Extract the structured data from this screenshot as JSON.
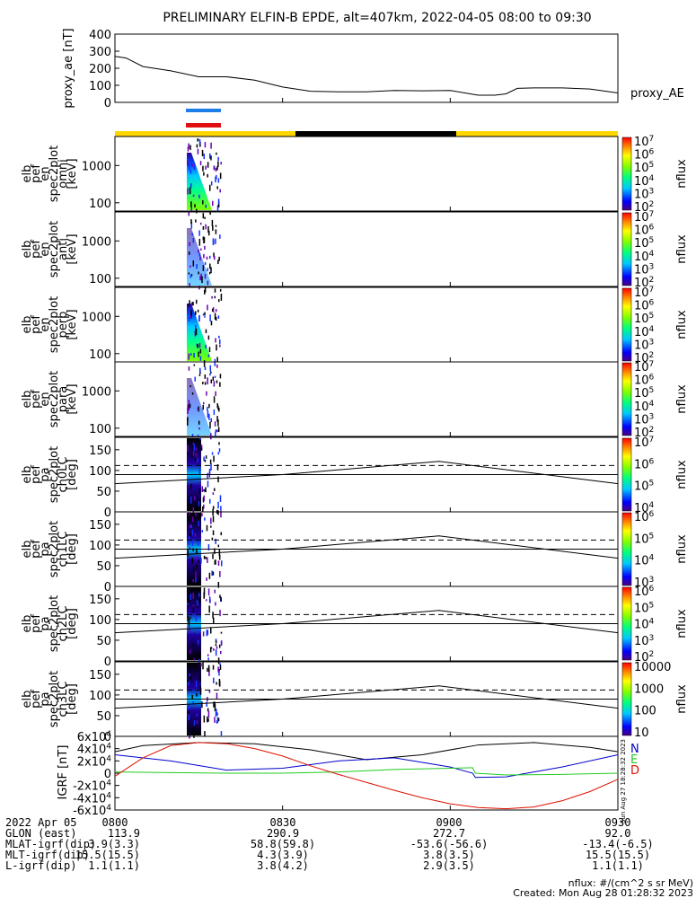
{
  "title": "PRELIMINARY ELFIN-B EPDE, alt=407km, 2022-04-05 08:00 to 09:30",
  "colors": {
    "sunlit": "#ffd700",
    "eclipse": "#000000",
    "blue_bar": "#1e7ee8",
    "red_bar": "#e01010",
    "igrf_n": "#0000cc",
    "igrf_e": "#22cc22",
    "igrf_d": "#dd1100",
    "igrf_total": "#000000"
  },
  "chart_data": [
    {
      "type": "line",
      "id": "proxy_ae",
      "ylabel": "proxy_ae [nT]",
      "series_name": "proxy_AE",
      "ylim": [
        0,
        400
      ],
      "yticks": [
        "0",
        "100",
        "200",
        "300",
        "400"
      ],
      "x": [
        0,
        2,
        5,
        10,
        15,
        20,
        25,
        30,
        35,
        40,
        45,
        50,
        55,
        60,
        65,
        68,
        70,
        72,
        75,
        80,
        85,
        90
      ],
      "values": [
        270,
        260,
        210,
        185,
        150,
        150,
        130,
        90,
        65,
        62,
        62,
        70,
        68,
        70,
        42,
        42,
        50,
        82,
        85,
        85,
        78,
        55
      ]
    },
    {
      "type": "heatmap",
      "id": "en_omni",
      "ylabel": [
        "elb",
        "pef",
        "en",
        "spec2plot",
        "omni",
        "[keV]"
      ],
      "yscale": "log",
      "ylim": [
        60,
        6000
      ],
      "yticks": [
        "100",
        "1000"
      ],
      "colorbar": {
        "label": "nflux",
        "ticks": [
          "10^2",
          "10^3",
          "10^4",
          "10^5",
          "10^6",
          "10^7"
        ]
      }
    },
    {
      "type": "heatmap",
      "id": "en_anti",
      "ylabel": [
        "elb",
        "pef",
        "en",
        "spec2plot",
        "anti",
        "[keV]"
      ],
      "yscale": "log",
      "ylim": [
        60,
        6000
      ],
      "yticks": [
        "100",
        "1000"
      ],
      "colorbar": {
        "label": "nflux",
        "ticks": [
          "10^2",
          "10^3",
          "10^4",
          "10^5",
          "10^6",
          "10^7"
        ]
      }
    },
    {
      "type": "heatmap",
      "id": "en_perp",
      "ylabel": [
        "elb",
        "pef",
        "en",
        "spec2plot",
        "perp",
        "[keV]"
      ],
      "yscale": "log",
      "ylim": [
        60,
        6000
      ],
      "yticks": [
        "100",
        "1000"
      ],
      "colorbar": {
        "label": "nflux",
        "ticks": [
          "10^2",
          "10^3",
          "10^4",
          "10^5",
          "10^6",
          "10^7"
        ]
      }
    },
    {
      "type": "heatmap",
      "id": "en_para",
      "ylabel": [
        "elb",
        "pef",
        "en",
        "spec2plot",
        "para",
        "[keV]"
      ],
      "yscale": "log",
      "ylim": [
        60,
        6000
      ],
      "yticks": [
        "100",
        "1000"
      ],
      "colorbar": {
        "label": "nflux",
        "ticks": [
          "10^2",
          "10^3",
          "10^4",
          "10^5",
          "10^6",
          "10^7"
        ]
      }
    },
    {
      "type": "heatmap",
      "id": "pa_ch0",
      "ylabel": [
        "elb",
        "pef",
        "pa",
        "spec2plot",
        "ch0LC",
        "[deg]"
      ],
      "ylim": [
        0,
        180
      ],
      "yticks": [
        "0",
        "50",
        "100",
        "150"
      ],
      "colorbar": {
        "label": "nflux",
        "ticks": [
          "10^4",
          "10^5",
          "10^6",
          "10^7"
        ]
      }
    },
    {
      "type": "heatmap",
      "id": "pa_ch1",
      "ylabel": [
        "elb",
        "pef",
        "pa",
        "spec2plot",
        "ch1LC",
        "[deg]"
      ],
      "ylim": [
        0,
        180
      ],
      "yticks": [
        "0",
        "50",
        "100",
        "150"
      ],
      "colorbar": {
        "label": "nflux",
        "ticks": [
          "10^3",
          "10^4",
          "10^5",
          "10^6"
        ]
      }
    },
    {
      "type": "heatmap",
      "id": "pa_ch2",
      "ylabel": [
        "elb",
        "pef",
        "pa",
        "spec2plot",
        "ch2LC",
        "[deg]"
      ],
      "ylim": [
        0,
        180
      ],
      "yticks": [
        "0",
        "50",
        "100",
        "150"
      ],
      "colorbar": {
        "label": "nflux",
        "ticks": [
          "10^2",
          "10^3",
          "10^4",
          "10^5",
          "10^6"
        ]
      }
    },
    {
      "type": "heatmap",
      "id": "pa_ch3",
      "ylabel": [
        "elb",
        "pef",
        "pa",
        "spec2plot",
        "ch3LC",
        "[deg]"
      ],
      "ylim": [
        0,
        180
      ],
      "yticks": [
        "0",
        "50",
        "100",
        "150"
      ],
      "colorbar": {
        "label": "nflux",
        "ticks": [
          "10",
          "100",
          "1000",
          "10000"
        ]
      }
    },
    {
      "type": "line",
      "id": "igrf",
      "ylabel": "IGRF [nT]",
      "ylim": [
        -60000,
        60000
      ],
      "yticks": [
        "-6x10^4",
        "-4x10^4",
        "-2x10^4",
        "0",
        "2x10^4",
        "4x10^4",
        "6x10^4"
      ],
      "legend": [
        "N",
        "E",
        "D"
      ],
      "series": [
        {
          "key": "total",
          "x": [
            0,
            5,
            15,
            25,
            35,
            45,
            55,
            65,
            75,
            85,
            90
          ],
          "values": [
            35000,
            45000,
            50000,
            48000,
            38000,
            22000,
            30000,
            46000,
            50000,
            42000,
            35000
          ]
        },
        {
          "key": "N",
          "x": [
            0,
            10,
            20,
            30,
            40,
            50,
            60,
            64,
            64.5,
            70,
            80,
            90
          ],
          "values": [
            30000,
            20000,
            5000,
            8000,
            20000,
            25000,
            10000,
            0,
            -7000,
            -6000,
            10000,
            30000
          ]
        },
        {
          "key": "E",
          "x": [
            0,
            10,
            20,
            30,
            40,
            50,
            60,
            64,
            64.5,
            70,
            80,
            90
          ],
          "values": [
            2000,
            1000,
            0,
            0,
            2000,
            6000,
            8000,
            9000,
            0,
            -3000,
            -2000,
            0
          ]
        },
        {
          "key": "D",
          "x": [
            0,
            5,
            10,
            15,
            20,
            25,
            30,
            35,
            40,
            45,
            50,
            55,
            60,
            65,
            70,
            75,
            80,
            85,
            90
          ],
          "values": [
            -5000,
            25000,
            45000,
            50000,
            48000,
            40000,
            28000,
            12000,
            -2000,
            -15000,
            -28000,
            -40000,
            -50000,
            -56000,
            -58000,
            -55000,
            -45000,
            -30000,
            -10000
          ]
        }
      ]
    }
  ],
  "bottom_table": {
    "date": "2022 Apr 05",
    "time_ticks": [
      "0800",
      "0830",
      "0900",
      "0930"
    ],
    "rows": [
      {
        "label": "GLON (east)",
        "values": [
          "113.9",
          "290.9",
          "272.7",
          "92.0"
        ]
      },
      {
        "label": "MLAT-igrf(dip)",
        "values": [
          "3.9(3.3)",
          "58.8(59.8)",
          "-53.6(-56.6)",
          "-13.4(-6.5)"
        ]
      },
      {
        "label": "MLT-igrf(dip)",
        "values": [
          "15.5(15.5)",
          "4.3(3.9)",
          "3.8(3.5)",
          "15.5(15.5)"
        ]
      },
      {
        "label": "L-igrf(dip)",
        "values": [
          "1.1(1.1)",
          "3.8(4.2)",
          "2.9(3.5)",
          "1.1(1.1)"
        ]
      }
    ]
  },
  "footnotes": {
    "units": "nflux: #/(cm^2 s sr MeV)",
    "created": "Created: Mon Aug 28 01:28:32 2023",
    "side_stamp": "Sun Aug 27 18:28:32 2023"
  }
}
